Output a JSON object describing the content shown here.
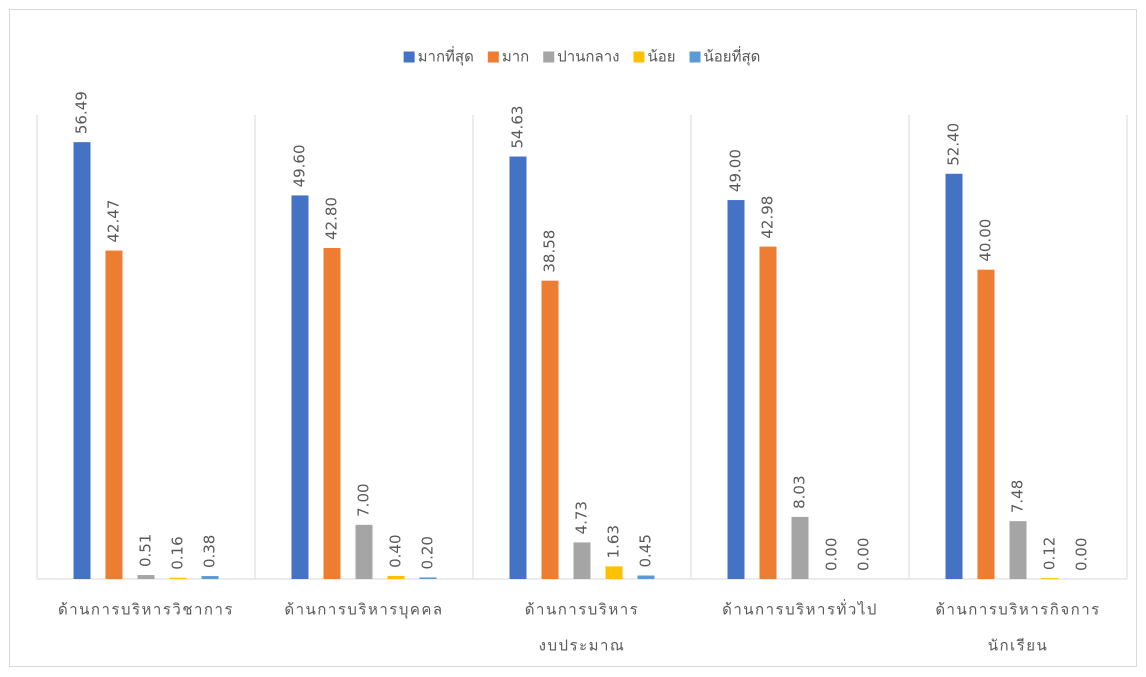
{
  "chart_data": {
    "type": "bar",
    "categories": [
      [
        "ด้านการบริหารวิชาการ"
      ],
      [
        "ด้านการบริหารบุคคล"
      ],
      [
        "ด้านการบริหาร",
        "งบประมาณ"
      ],
      [
        "ด้านการบริหารทั่วไป"
      ],
      [
        "ด้านการบริหารกิจการ",
        "นักเรียน"
      ]
    ],
    "series": [
      {
        "name": "มากที่สุด",
        "color": "#4472c4",
        "values": [
          56.49,
          49.6,
          54.63,
          49,
          52.4
        ],
        "value_labels": [
          "56.49",
          "49.60",
          "54.63",
          "49.00",
          "52.40"
        ]
      },
      {
        "name": "มาก",
        "color": "#ed7d31",
        "values": [
          42.47,
          42.8,
          38.58,
          42.98,
          40
        ],
        "value_labels": [
          "42.47",
          "42.80",
          "38.58",
          "42.98",
          "40.00"
        ]
      },
      {
        "name": "ปานกลาง",
        "color": "#a5a5a5",
        "values": [
          0.51,
          7,
          4.73,
          8.03,
          7.48
        ],
        "value_labels": [
          "0.51",
          "7.00",
          "4.73",
          "8.03",
          "7.48"
        ]
      },
      {
        "name": "น้อย",
        "color": "#ffc000",
        "values": [
          0.16,
          0.4,
          1.63,
          0,
          0.12
        ],
        "value_labels": [
          "0.16",
          "0.40",
          "1.63",
          "0.00",
          "0.12"
        ]
      },
      {
        "name": "น้อยที่สุด",
        "color": "#5b9bd5",
        "values": [
          0.38,
          0.2,
          0.45,
          0,
          0
        ],
        "value_labels": [
          "0.38",
          "0.20",
          "0.45",
          "0.00",
          "0.00"
        ]
      }
    ],
    "ylim": [
      0,
      60
    ],
    "legend": "top"
  }
}
